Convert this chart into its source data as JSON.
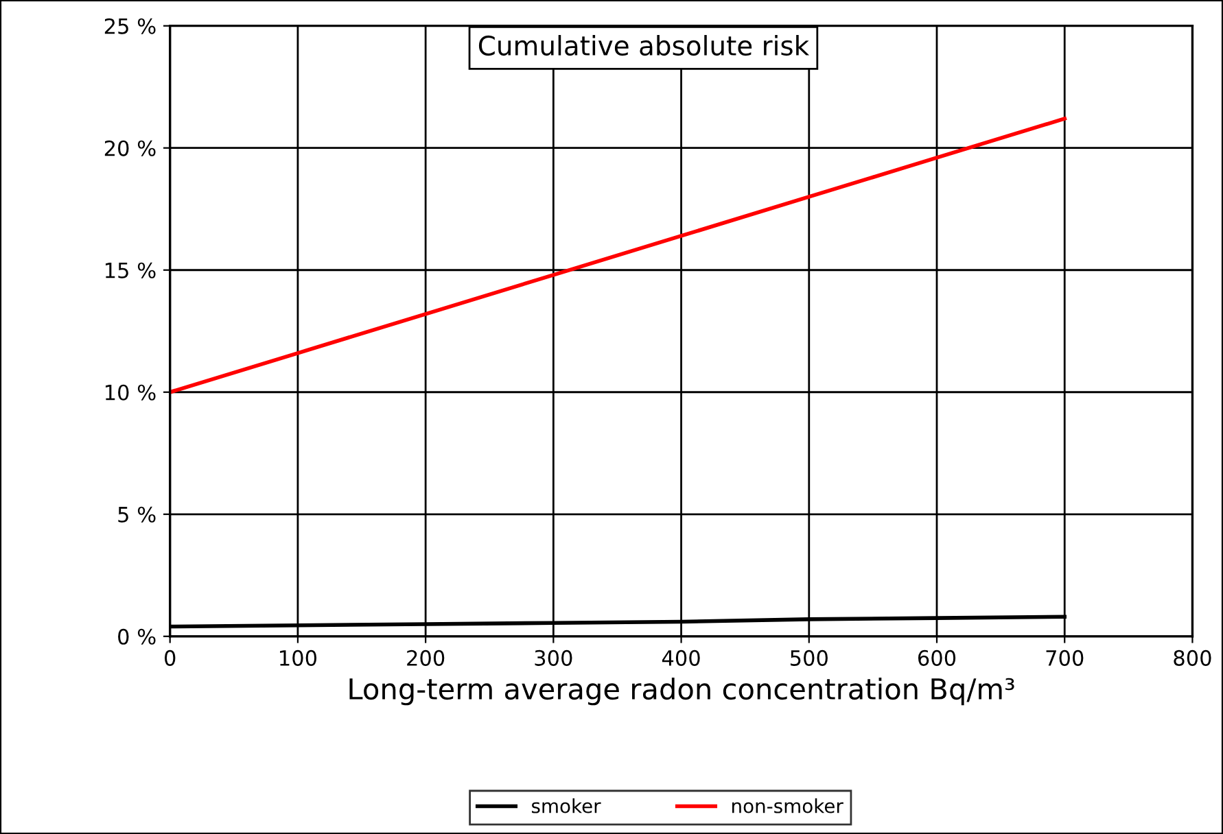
{
  "chart_data": {
    "type": "line",
    "title": "Cumulative absolute risk",
    "xlabel": "Long-term average radon concentration Bq/m³",
    "x": [
      0,
      100,
      200,
      300,
      400,
      500,
      600,
      700
    ],
    "series": [
      {
        "name": "smoker",
        "color": "#000000",
        "values": [
          0.4,
          0.45,
          0.5,
          0.55,
          0.6,
          0.7,
          0.75,
          0.8
        ]
      },
      {
        "name": "non-smoker",
        "color": "#ff0000",
        "values": [
          10,
          11.6,
          13.2,
          14.8,
          16.4,
          18.0,
          19.6,
          21.2
        ]
      }
    ],
    "xlim": [
      0,
      800
    ],
    "xticks": [
      0,
      100,
      200,
      300,
      400,
      500,
      600,
      700,
      800
    ],
    "ylim": [
      0,
      25
    ],
    "yticks": [
      {
        "value": 0,
        "label": "0 %"
      },
      {
        "value": 5,
        "label": "5 %"
      },
      {
        "value": 10,
        "label": "10 %"
      },
      {
        "value": 15,
        "label": "15 %"
      },
      {
        "value": 20,
        "label": "20 %"
      },
      {
        "value": 25,
        "label": "25 %"
      }
    ],
    "grid": true,
    "legend": "bottom",
    "marker": "none",
    "line_style": "solid"
  }
}
